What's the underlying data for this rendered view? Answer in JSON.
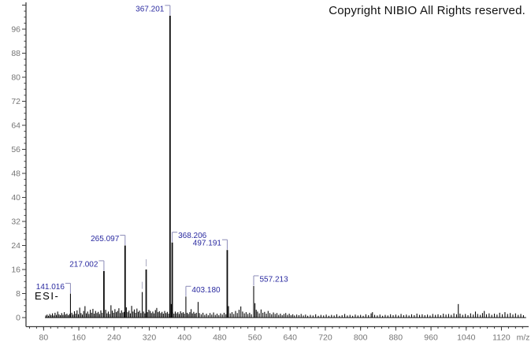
{
  "copyright": "Copyright NIBIO All Rights reserved.",
  "ionization_mode": "ESI-",
  "chart_data": {
    "type": "bar",
    "subtype": "mass-spectrum-sticks",
    "title": "",
    "xlabel": "m/z",
    "ylabel": "",
    "xlim": [
      40,
      1180
    ],
    "ylim": [
      0,
      105
    ],
    "grid": false,
    "legend": "none",
    "x_tick_labels": [
      80,
      160,
      240,
      320,
      400,
      480,
      560,
      640,
      720,
      800,
      880,
      960,
      1040,
      1120
    ],
    "x_axis_unit_label": "m/z",
    "x_minor_step": 16,
    "y_tick_labels": [
      0,
      8,
      16,
      24,
      32,
      40,
      48,
      56,
      64,
      72,
      80,
      88,
      96
    ],
    "y_major_step": 8,
    "y_minor_step": 2,
    "labeled_peaks": [
      {
        "mz": 141.016,
        "intensity": 8.0,
        "label": "141.016",
        "callout": "right",
        "dx": 0
      },
      {
        "mz": 217.002,
        "intensity": 15.5,
        "label": "217.002",
        "callout": "right",
        "dx": 0
      },
      {
        "mz": 265.097,
        "intensity": 24.0,
        "label": "265.097",
        "callout": "right",
        "dx": 0
      },
      {
        "mz": 367.201,
        "intensity": 100.5,
        "label": "367.201",
        "callout": "right",
        "dx": 0
      },
      {
        "mz": 368.206,
        "intensity": 25.0,
        "label": "368.206",
        "callout": "left",
        "dx": 2.2
      },
      {
        "mz": 403.18,
        "intensity": 7.0,
        "label": "403.180",
        "callout": "left",
        "dx": 0
      },
      {
        "mz": 497.191,
        "intensity": 22.5,
        "label": "497.191",
        "callout": "right",
        "dx": 0
      },
      {
        "mz": 557.213,
        "intensity": 10.5,
        "label": "557.213",
        "callout": "left",
        "dx": 0
      }
    ],
    "marked_peaks": [
      {
        "mz": 304,
        "intensity": 8.5
      },
      {
        "mz": 313,
        "intensity": 16.0
      }
    ],
    "peaks": [
      [
        85,
        0.7
      ],
      [
        88,
        1.0
      ],
      [
        91,
        0.6
      ],
      [
        94,
        1.2
      ],
      [
        97,
        0.8
      ],
      [
        100,
        1.4
      ],
      [
        103,
        0.7
      ],
      [
        106,
        1.6
      ],
      [
        109,
        0.9
      ],
      [
        112,
        2.0
      ],
      [
        115,
        1.1
      ],
      [
        118,
        0.8
      ],
      [
        121,
        1.5
      ],
      [
        124,
        0.9
      ],
      [
        127,
        1.8
      ],
      [
        130,
        1.0
      ],
      [
        133,
        1.3
      ],
      [
        136,
        0.8
      ],
      [
        139,
        1.2
      ],
      [
        144,
        1.6
      ],
      [
        147,
        1.0
      ],
      [
        150,
        2.1
      ],
      [
        153,
        1.3
      ],
      [
        156,
        2.4
      ],
      [
        159,
        1.1
      ],
      [
        162,
        3.3
      ],
      [
        165,
        1.5
      ],
      [
        168,
        1.0
      ],
      [
        171,
        2.2
      ],
      [
        174,
        3.8
      ],
      [
        177,
        1.4
      ],
      [
        180,
        2.0
      ],
      [
        183,
        1.2
      ],
      [
        186,
        2.6
      ],
      [
        189,
        1.6
      ],
      [
        192,
        2.9
      ],
      [
        195,
        1.3
      ],
      [
        198,
        2.2
      ],
      [
        201,
        1.5
      ],
      [
        204,
        1.9
      ],
      [
        207,
        1.2
      ],
      [
        210,
        2.4
      ],
      [
        213,
        1.6
      ],
      [
        221,
        2.6
      ],
      [
        224,
        1.4
      ],
      [
        227,
        2.0
      ],
      [
        230,
        1.2
      ],
      [
        233,
        4.1
      ],
      [
        236,
        2.3
      ],
      [
        239,
        1.6
      ],
      [
        242,
        2.8
      ],
      [
        245,
        1.8
      ],
      [
        248,
        2.2
      ],
      [
        251,
        3.1
      ],
      [
        254,
        1.5
      ],
      [
        257,
        2.4
      ],
      [
        260,
        1.7
      ],
      [
        263,
        1.9
      ],
      [
        268,
        3.4
      ],
      [
        271,
        1.8
      ],
      [
        274,
        2.3
      ],
      [
        277,
        1.4
      ],
      [
        280,
        3.9
      ],
      [
        283,
        2.0
      ],
      [
        286,
        2.7
      ],
      [
        289,
        1.6
      ],
      [
        292,
        3.0
      ],
      [
        295,
        1.9
      ],
      [
        298,
        2.3
      ],
      [
        301,
        1.5
      ],
      [
        307,
        2.0
      ],
      [
        310,
        1.4
      ],
      [
        316,
        1.8
      ],
      [
        319,
        2.6
      ],
      [
        322,
        2.2
      ],
      [
        325,
        1.5
      ],
      [
        328,
        2.0
      ],
      [
        331,
        1.4
      ],
      [
        334,
        2.5
      ],
      [
        337,
        3.2
      ],
      [
        340,
        1.8
      ],
      [
        343,
        2.1
      ],
      [
        346,
        1.5
      ],
      [
        349,
        1.9
      ],
      [
        352,
        1.3
      ],
      [
        355,
        2.2
      ],
      [
        358,
        1.5
      ],
      [
        361,
        1.9
      ],
      [
        364,
        1.3
      ],
      [
        370,
        4.5
      ],
      [
        373,
        1.8
      ],
      [
        376,
        1.3
      ],
      [
        379,
        2.0
      ],
      [
        382,
        1.4
      ],
      [
        385,
        1.8
      ],
      [
        388,
        1.2
      ],
      [
        391,
        2.1
      ],
      [
        394,
        1.5
      ],
      [
        397,
        1.8
      ],
      [
        400,
        1.3
      ],
      [
        406,
        1.6
      ],
      [
        409,
        1.2
      ],
      [
        412,
        1.8
      ],
      [
        415,
        2.8
      ],
      [
        418,
        1.4
      ],
      [
        421,
        1.9
      ],
      [
        424,
        1.3
      ],
      [
        427,
        1.6
      ],
      [
        431,
        5.2
      ],
      [
        434,
        1.5
      ],
      [
        438,
        1.1
      ],
      [
        442,
        1.6
      ],
      [
        446,
        0.9
      ],
      [
        450,
        1.3
      ],
      [
        454,
        0.8
      ],
      [
        458,
        1.5
      ],
      [
        462,
        1.0
      ],
      [
        466,
        1.7
      ],
      [
        470,
        0.9
      ],
      [
        474,
        1.3
      ],
      [
        478,
        0.8
      ],
      [
        482,
        1.4
      ],
      [
        486,
        1.0
      ],
      [
        490,
        1.6
      ],
      [
        494,
        1.1
      ],
      [
        500,
        3.8
      ],
      [
        504,
        1.4
      ],
      [
        508,
        1.8
      ],
      [
        512,
        1.2
      ],
      [
        516,
        2.2
      ],
      [
        520,
        1.5
      ],
      [
        524,
        2.6
      ],
      [
        528,
        3.7
      ],
      [
        532,
        2.0
      ],
      [
        536,
        1.4
      ],
      [
        540,
        1.8
      ],
      [
        544,
        1.2
      ],
      [
        548,
        1.6
      ],
      [
        552,
        1.1
      ],
      [
        560,
        4.8
      ],
      [
        563,
        2.6
      ],
      [
        566,
        2.0
      ],
      [
        570,
        1.4
      ],
      [
        574,
        2.7
      ],
      [
        578,
        1.6
      ],
      [
        582,
        1.9
      ],
      [
        586,
        1.3
      ],
      [
        590,
        2.2
      ],
      [
        594,
        1.5
      ],
      [
        598,
        1.1
      ],
      [
        602,
        1.7
      ],
      [
        606,
        1.2
      ],
      [
        610,
        1.5
      ],
      [
        614,
        0.9
      ],
      [
        618,
        1.3
      ],
      [
        622,
        0.8
      ],
      [
        626,
        1.2
      ],
      [
        630,
        1.5
      ],
      [
        634,
        0.9
      ],
      [
        638,
        1.3
      ],
      [
        642,
        0.8
      ],
      [
        646,
        1.1
      ],
      [
        650,
        0.7
      ],
      [
        655,
        1.0
      ],
      [
        660,
        0.8
      ],
      [
        665,
        1.2
      ],
      [
        670,
        0.7
      ],
      [
        675,
        1.0
      ],
      [
        680,
        0.6
      ],
      [
        686,
        0.9
      ],
      [
        692,
        0.7
      ],
      [
        698,
        1.1
      ],
      [
        704,
        0.6
      ],
      [
        710,
        0.9
      ],
      [
        716,
        0.7
      ],
      [
        722,
        1.0
      ],
      [
        728,
        0.6
      ],
      [
        734,
        0.9
      ],
      [
        740,
        0.7
      ],
      [
        746,
        1.1
      ],
      [
        752,
        0.6
      ],
      [
        758,
        0.8
      ],
      [
        764,
        1.2
      ],
      [
        770,
        0.7
      ],
      [
        776,
        0.9
      ],
      [
        782,
        0.6
      ],
      [
        788,
        1.0
      ],
      [
        794,
        0.7
      ],
      [
        800,
        0.9
      ],
      [
        806,
        0.6
      ],
      [
        812,
        1.1
      ],
      [
        818,
        0.8
      ],
      [
        824,
        1.4
      ],
      [
        827,
        1.8
      ],
      [
        832,
        0.9
      ],
      [
        838,
        0.7
      ],
      [
        844,
        1.0
      ],
      [
        850,
        0.6
      ],
      [
        856,
        0.9
      ],
      [
        862,
        0.7
      ],
      [
        868,
        1.1
      ],
      [
        874,
        0.8
      ],
      [
        880,
        1.0
      ],
      [
        886,
        0.7
      ],
      [
        892,
        1.2
      ],
      [
        898,
        0.8
      ],
      [
        904,
        1.0
      ],
      [
        910,
        0.7
      ],
      [
        916,
        1.1
      ],
      [
        922,
        0.8
      ],
      [
        928,
        1.3
      ],
      [
        934,
        0.9
      ],
      [
        940,
        1.1
      ],
      [
        946,
        0.8
      ],
      [
        952,
        1.0
      ],
      [
        958,
        0.7
      ],
      [
        964,
        1.2
      ],
      [
        970,
        0.9
      ],
      [
        976,
        1.1
      ],
      [
        982,
        0.8
      ],
      [
        988,
        1.3
      ],
      [
        994,
        1.0
      ],
      [
        1000,
        1.2
      ],
      [
        1006,
        0.9
      ],
      [
        1012,
        1.4
      ],
      [
        1018,
        1.1
      ],
      [
        1022,
        4.5
      ],
      [
        1026,
        1.3
      ],
      [
        1032,
        0.9
      ],
      [
        1038,
        1.2
      ],
      [
        1044,
        0.8
      ],
      [
        1050,
        1.4
      ],
      [
        1056,
        1.0
      ],
      [
        1061,
        2.0
      ],
      [
        1066,
        1.2
      ],
      [
        1072,
        0.9
      ],
      [
        1077,
        1.5
      ],
      [
        1081,
        2.2
      ],
      [
        1086,
        1.1
      ],
      [
        1092,
        1.4
      ],
      [
        1098,
        0.9
      ],
      [
        1104,
        1.3
      ],
      [
        1110,
        1.0
      ],
      [
        1116,
        1.6
      ],
      [
        1122,
        1.1
      ],
      [
        1128,
        1.8
      ],
      [
        1134,
        1.2
      ],
      [
        1140,
        1.5
      ],
      [
        1146,
        1.0
      ],
      [
        1152,
        1.4
      ],
      [
        1158,
        0.9
      ],
      [
        1164,
        1.2
      ],
      [
        1170,
        0.8
      ]
    ],
    "baseline_range_mz": [
      83,
      1176
    ],
    "colors": {
      "peak": "#0a0a0a",
      "peak_label": "#2a2aa0",
      "callout": "#9595bd",
      "unlabeled_marker": "#b3b3c6",
      "axis": "#3c3c3c",
      "tick_label": "#757575",
      "background": "#ffffff"
    }
  }
}
